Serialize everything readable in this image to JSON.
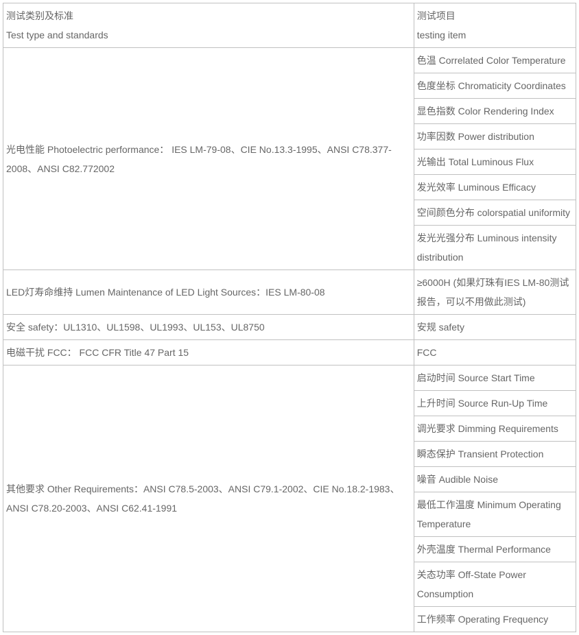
{
  "table": {
    "border_color": "#c0c0c0",
    "text_color": "#666666",
    "font_family": "Microsoft YaHei",
    "font_size": 14,
    "header": {
      "left_zh": "测试类别及标准",
      "left_en": "Test type and standards",
      "right_zh": "测试项目",
      "right_en": "testing item"
    },
    "groups": [
      {
        "left": "光电性能 Photoelectric performance： IES LM-79-08、CIE No.13.3-1995、ANSI C78.377-2008、ANSI C82.772002",
        "rights": [
          "色温 Correlated Color Temperature",
          "色度坐标 Chromaticity Coordinates",
          "显色指数 Color Rendering Index",
          "功率因数 Power distribution",
          "光输出 Total Luminous Flux",
          "发光效率 Luminous Efficacy",
          "空间颜色分布 colorspatial uniformity",
          "发光光强分布 Luminous intensity distribution"
        ]
      },
      {
        "left": "LED灯寿命维持 Lumen Maintenance of LED Light Sources：IES LM-80-08",
        "rights": [
          "≥6000H (如果灯珠有IES LM-80测试报告，可以不用做此测试)"
        ]
      },
      {
        "left": "安全 safety：UL1310、UL1598、UL1993、UL153、UL8750",
        "rights": [
          "安规 safety"
        ]
      },
      {
        "left": "电磁干扰 FCC： FCC CFR Title 47 Part 15",
        "rights": [
          "FCC"
        ]
      },
      {
        "left": "其他要求 Other Requirements：ANSI C78.5-2003、ANSI C79.1-2002、CIE No.18.2-1983、ANSI C78.20-2003、ANSI C62.41-1991",
        "rights": [
          "启动时间 Source Start Time",
          "上升时间 Source Run-Up Time",
          "调光要求 Dimming Requirements",
          "瞬态保护 Transient Protection",
          "噪音 Audible Noise",
          "最低工作温度 Minimum Operating Temperature",
          "外壳温度 Thermal Performance",
          "关态功率 Off-State Power Consumption",
          "工作频率 Operating Frequency"
        ]
      }
    ]
  }
}
